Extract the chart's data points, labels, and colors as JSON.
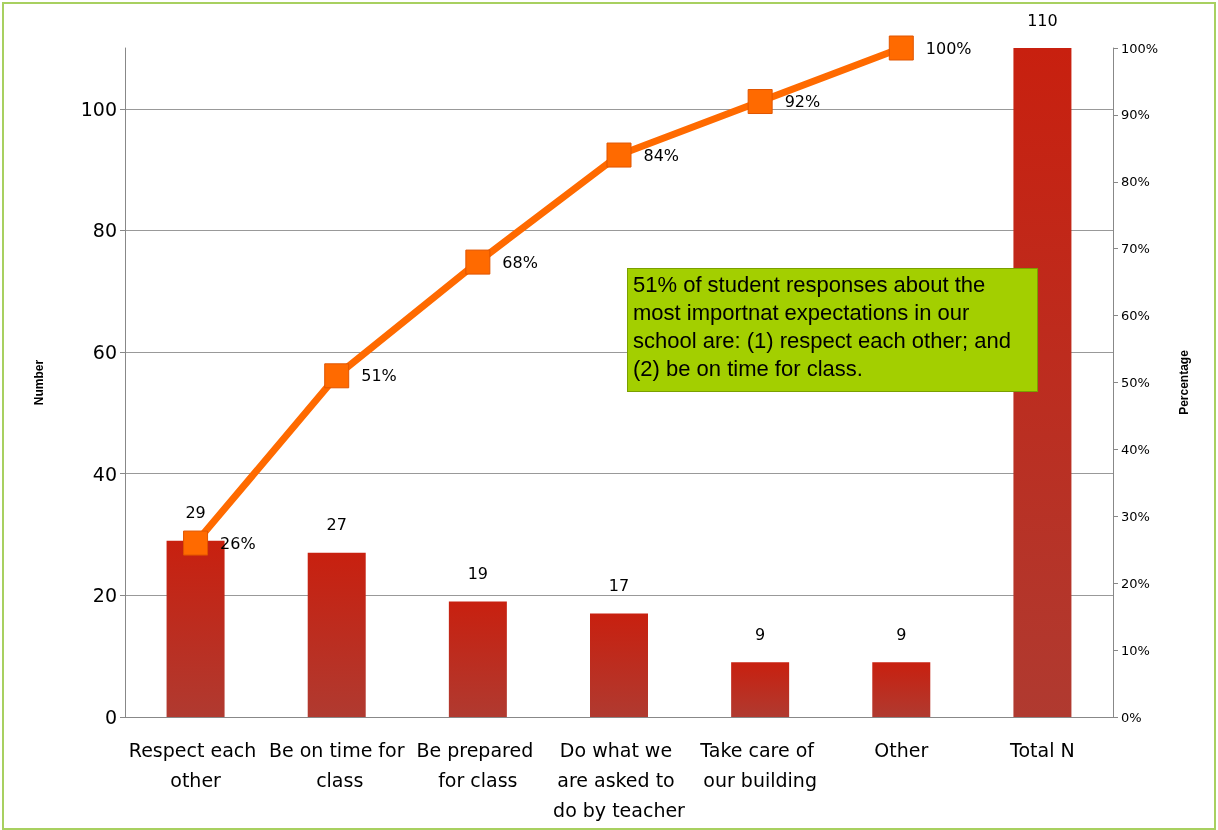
{
  "chart_data": {
    "type": "bar",
    "ylabel": "Number",
    "y2label": "Percentage",
    "categories": [
      "Respect each other",
      "Be on time for class",
      "Be prepared for class",
      "Do what we are asked to do by teacher",
      "Take care of our building",
      "Other",
      "Total N"
    ],
    "series": [
      {
        "color": "#c8200f",
        "values": [
          29,
          27,
          19,
          17,
          9,
          9,
          110
        ],
        "value_labels": [
          "29",
          "27",
          "19",
          "17",
          "9",
          "9",
          "110"
        ]
      },
      {
        "type": "line",
        "axis": "y2",
        "color": "#ff6a00",
        "marker": "square",
        "line_style": "solid",
        "values": [
          26,
          51,
          68,
          84,
          92,
          100,
          null
        ],
        "value_labels": [
          "26%",
          "51%",
          "68%",
          "84%",
          "92%",
          "100%",
          null
        ]
      }
    ],
    "ylim": [
      0,
      110
    ],
    "yticks": [
      0,
      20,
      40,
      60,
      80,
      100
    ],
    "y2lim": [
      0,
      100
    ],
    "y2ticks": [
      {
        "value": 0,
        "label": "0%"
      },
      {
        "value": 10,
        "label": "10%"
      },
      {
        "value": 20,
        "label": "20%"
      },
      {
        "value": 30,
        "label": "30%"
      },
      {
        "value": 40,
        "label": "40%"
      },
      {
        "value": 50,
        "label": "50%"
      },
      {
        "value": 60,
        "label": "60%"
      },
      {
        "value": 70,
        "label": "70%"
      },
      {
        "value": 80,
        "label": "80%"
      },
      {
        "value": 90,
        "label": "90%"
      },
      {
        "value": 100,
        "label": "100%"
      }
    ],
    "grid": "y",
    "annotations": [
      "51% of student responses about the most importnat expectations in our school are: (1) respect each other; and (2) be on time for class."
    ]
  }
}
